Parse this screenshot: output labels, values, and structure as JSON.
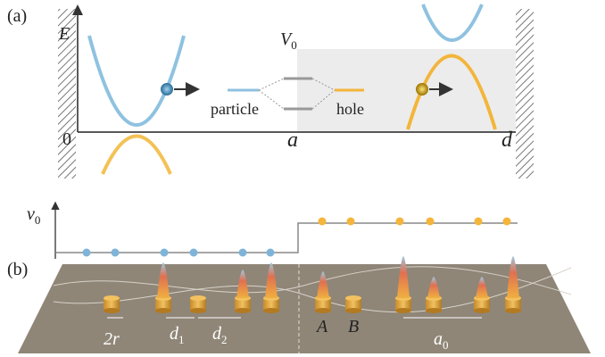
{
  "panel_a": {
    "label": "(a)",
    "energy_axis": "E",
    "barrier": {
      "symbol": "V",
      "subscript": "0"
    },
    "origin": "0",
    "interface": "a",
    "end": "d",
    "left_level": "particle",
    "right_level": "hole"
  },
  "panel_b": {
    "label": "(b)",
    "axis": {
      "symbol": "ν",
      "subscript": "0"
    },
    "radius": "2r",
    "gap1": {
      "symbol": "d",
      "subscript": "1"
    },
    "gap2": {
      "symbol": "d",
      "subscript": "2"
    },
    "site_a": "A",
    "site_b": "B",
    "period": {
      "symbol": "a",
      "subscript": "0"
    }
  }
}
